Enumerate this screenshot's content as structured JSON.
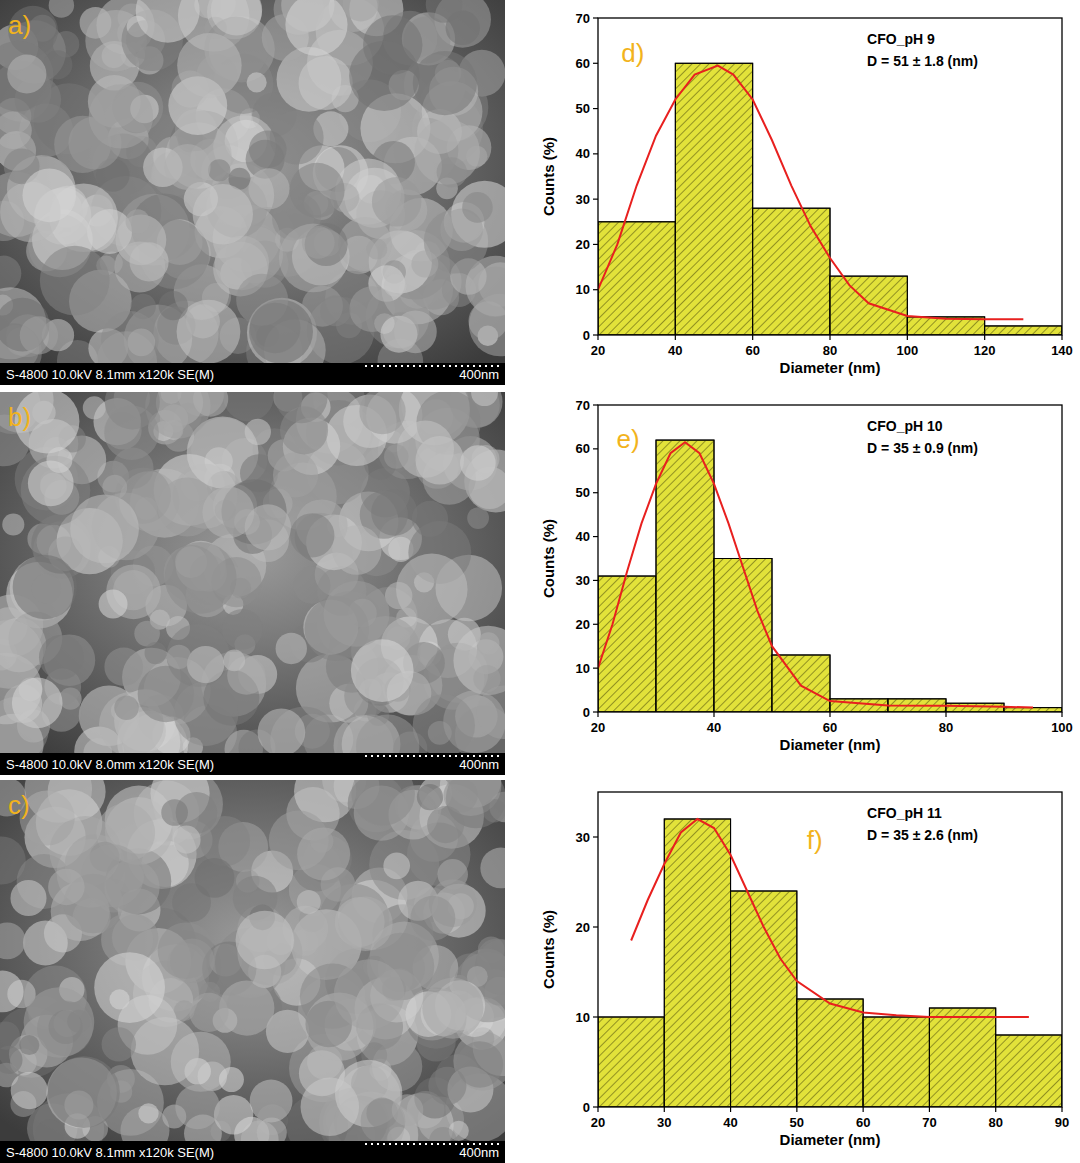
{
  "sem_images": [
    {
      "label": "a)",
      "info": "S-4800 10.0kV 8.1mm x120k SE(M)",
      "scale_bar": "400nm"
    },
    {
      "label": "b)",
      "info": "S-4800 10.0kV 8.0mm x120k SE(M)",
      "scale_bar": "400nm"
    },
    {
      "label": "c)",
      "info": "S-4800 10.0kV 8.1mm x120k SE(M)",
      "scale_bar": "400nm"
    }
  ],
  "chart_data": [
    {
      "type": "histogram",
      "panel": "d)",
      "title": "CFO_pH 9",
      "subtitle": "D = 51 ± 1.8 (nm)",
      "x_label": "Diameter (nm)",
      "y_label": "Counts (%)",
      "bins": [
        20,
        40,
        60,
        80,
        100,
        120,
        140
      ],
      "values": [
        25,
        60,
        28,
        13,
        4,
        2
      ],
      "color": "#e2e23a",
      "xlim": [
        20,
        140
      ],
      "xticks": [
        20,
        40,
        60,
        80,
        100,
        120,
        140
      ],
      "ylim": [
        0,
        70
      ],
      "yticks": [
        0,
        10,
        20,
        30,
        40,
        50,
        60,
        70
      ],
      "series": [
        {
          "type": "line",
          "color": "#e8201f",
          "x": [
            20,
            25,
            30,
            35,
            40,
            45,
            51,
            55,
            60,
            65,
            70,
            75,
            80,
            85,
            90,
            100,
            110,
            120,
            130
          ],
          "values": [
            10,
            20,
            33,
            44,
            52,
            57.5,
            59.5,
            57.5,
            52,
            43,
            33,
            24,
            17,
            11,
            7,
            4.2,
            3.6,
            3.5,
            3.5
          ]
        }
      ]
    },
    {
      "type": "histogram",
      "panel": "e)",
      "title": "CFO_pH 10",
      "subtitle": "D = 35 ± 0.9 (nm)",
      "x_label": "Diameter (nm)",
      "y_label": "Counts (%)",
      "bins": [
        20,
        30,
        40,
        50,
        60,
        70,
        80,
        90,
        100
      ],
      "values": [
        31,
        62,
        35,
        13,
        3,
        3,
        2,
        1
      ],
      "color": "#e2e23a",
      "xlim": [
        20,
        100
      ],
      "xticks": [
        20,
        40,
        60,
        80,
        100
      ],
      "ylim": [
        0,
        70
      ],
      "yticks": [
        0,
        10,
        20,
        30,
        40,
        50,
        60,
        70
      ],
      "series": [
        {
          "type": "line",
          "color": "#e8201f",
          "x": [
            20,
            22.5,
            25,
            27.5,
            30,
            32.5,
            35,
            37.5,
            40,
            42.5,
            45,
            47.5,
            50,
            55,
            60,
            70,
            80,
            90,
            95
          ],
          "values": [
            10,
            20,
            32,
            43,
            52,
            59,
            61.5,
            59,
            52,
            43,
            33,
            23,
            15,
            6,
            2.5,
            1.5,
            1.4,
            1.2,
            1
          ]
        }
      ]
    },
    {
      "type": "histogram",
      "panel": "f)",
      "title": "CFO_pH 11",
      "subtitle": "D = 35 ± 2.6 (nm)",
      "x_label": "Diameter (nm)",
      "y_label": "Counts (%)",
      "bins": [
        20,
        30,
        40,
        50,
        60,
        70,
        80,
        90
      ],
      "values": [
        10,
        32,
        24,
        12,
        10,
        11,
        8
      ],
      "color": "#e2e23a",
      "xlim": [
        20,
        90
      ],
      "xticks": [
        20,
        30,
        40,
        50,
        60,
        70,
        80,
        90
      ],
      "ylim": [
        0,
        35
      ],
      "yticks": [
        0,
        10,
        20,
        30
      ],
      "series": [
        {
          "type": "line",
          "color": "#e8201f",
          "x": [
            25,
            27.5,
            30,
            32.5,
            35,
            37.5,
            40,
            42.5,
            45,
            47.5,
            50,
            55,
            60,
            65,
            70,
            75,
            80,
            85
          ],
          "values": [
            18.5,
            23,
            27,
            30.5,
            32,
            31,
            28,
            24,
            20,
            16.5,
            14,
            11.5,
            10.5,
            10.2,
            10,
            10,
            10,
            10
          ]
        }
      ]
    }
  ]
}
